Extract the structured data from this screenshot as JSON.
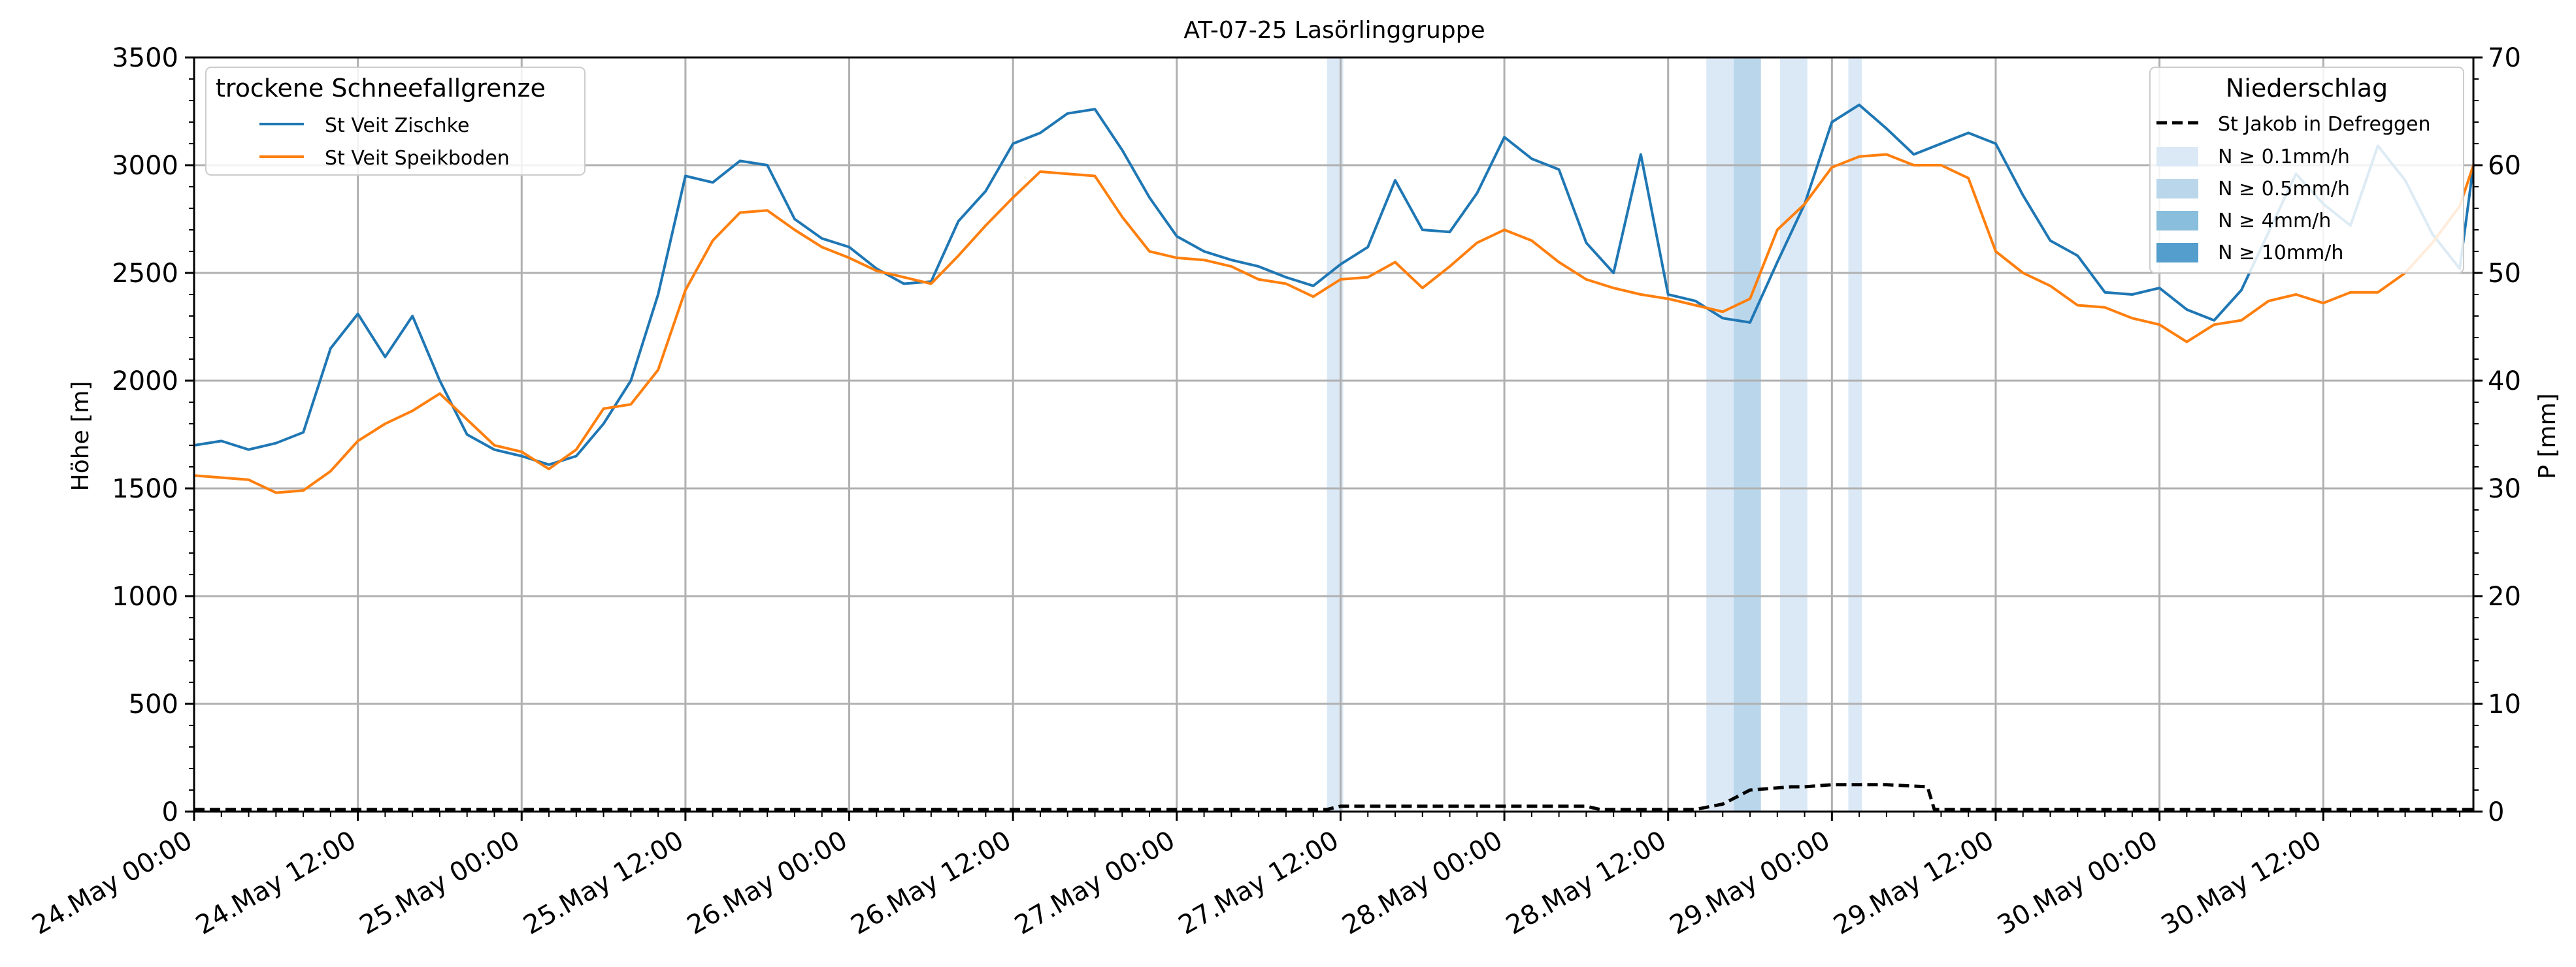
{
  "chart_data": {
    "type": "line",
    "title": "AT-07-25 Lasörlinggruppe",
    "ylabel_left": "Höhe [m]",
    "ylabel_right": "P [mm]",
    "ylim_left": [
      0,
      3500
    ],
    "ylim_right": [
      0,
      70
    ],
    "xlim_hours": [
      0,
      167
    ],
    "grid": true,
    "x_tick_labels": [
      "24.May 00:00",
      "24.May 12:00",
      "25.May 00:00",
      "25.May 12:00",
      "26.May 00:00",
      "26.May 12:00",
      "27.May 00:00",
      "27.May 12:00",
      "28.May 00:00",
      "28.May 12:00",
      "29.May 00:00",
      "29.May 12:00",
      "30.May 00:00",
      "30.May 12:00"
    ],
    "y_left_ticks": [
      0,
      500,
      1000,
      1500,
      2000,
      2500,
      3000,
      3500
    ],
    "y_right_ticks": [
      0,
      10,
      20,
      30,
      40,
      50,
      60,
      70
    ],
    "legend_left": {
      "title": "trockene Schneefallgrenze",
      "placement": "top-left",
      "entries": [
        "St Veit Zischke",
        "St Veit Speikboden"
      ]
    },
    "legend_right": {
      "title": "Niederschlag",
      "placement": "top-right",
      "entries": [
        "St Jakob in Defreggen",
        "N ≥ 0.1mm/h",
        "N ≥ 0.5mm/h",
        "N ≥ 4mm/h",
        "N ≥ 10mm/h"
      ]
    },
    "colors": {
      "zischke": "#1f77b4",
      "speikboden": "#ff7f0e",
      "precip": "#000000",
      "n01": "#dbe9f6",
      "n05": "#bad6eb",
      "n4": "#89bedc",
      "n10": "#539ecd",
      "grid": "#b0b0b0"
    },
    "series": [
      {
        "name": "St Veit Zischke",
        "x": [
          0,
          2,
          4,
          6,
          8,
          10,
          12,
          14,
          16,
          18,
          20,
          22,
          24,
          26,
          28,
          30,
          32,
          34,
          36,
          38,
          40,
          42,
          44,
          46,
          48,
          50,
          52,
          54,
          56,
          58,
          60,
          62,
          64,
          66,
          68,
          70,
          72,
          74,
          76,
          78,
          80,
          82,
          84,
          86,
          88,
          90,
          92,
          94,
          96,
          98,
          100,
          102,
          104,
          106,
          108,
          110,
          112,
          114,
          116,
          118,
          120,
          122,
          124,
          126,
          128,
          130,
          132,
          134,
          136,
          138,
          140,
          142,
          144,
          146,
          148,
          150,
          152,
          154,
          156,
          158,
          160,
          162,
          164,
          166,
          167
        ],
        "values": [
          1700,
          1720,
          1680,
          1710,
          1760,
          2150,
          2310,
          2110,
          2300,
          2000,
          1750,
          1680,
          1650,
          1610,
          1650,
          1800,
          2000,
          2400,
          2950,
          2920,
          3020,
          3000,
          2750,
          2660,
          2620,
          2520,
          2450,
          2460,
          2740,
          2880,
          3100,
          3150,
          3240,
          3260,
          3070,
          2850,
          2670,
          2600,
          2560,
          2530,
          2480,
          2440,
          2540,
          2620,
          2930,
          2700,
          2690,
          2870,
          3130,
          3030,
          2980,
          2640,
          2500,
          3050,
          2400,
          2370,
          2290,
          2270,
          2550,
          2820,
          3200,
          3280,
          3170,
          3050,
          3100,
          3150,
          3100,
          2860,
          2650,
          2580,
          2410,
          2400,
          2430,
          2330,
          2280,
          2420,
          2690,
          2960,
          2820,
          2720,
          3090,
          2930,
          2680,
          2520,
          3000
        ]
      },
      {
        "name": "St Veit Speikboden",
        "x": [
          0,
          2,
          4,
          6,
          8,
          10,
          12,
          14,
          16,
          18,
          20,
          22,
          24,
          26,
          28,
          30,
          32,
          34,
          36,
          38,
          40,
          42,
          44,
          46,
          48,
          50,
          52,
          54,
          56,
          58,
          60,
          62,
          64,
          66,
          68,
          70,
          72,
          74,
          76,
          78,
          80,
          82,
          84,
          86,
          88,
          90,
          92,
          94,
          96,
          98,
          100,
          102,
          104,
          106,
          108,
          110,
          112,
          114,
          116,
          118,
          120,
          122,
          124,
          126,
          128,
          130,
          132,
          134,
          136,
          138,
          140,
          142,
          144,
          146,
          148,
          150,
          152,
          154,
          156,
          158,
          160,
          162,
          164,
          166,
          167
        ],
        "values": [
          1560,
          1550,
          1540,
          1480,
          1490,
          1580,
          1720,
          1800,
          1860,
          1940,
          1820,
          1700,
          1670,
          1590,
          1680,
          1870,
          1890,
          2050,
          2420,
          2650,
          2780,
          2790,
          2700,
          2620,
          2570,
          2510,
          2480,
          2450,
          2580,
          2720,
          2850,
          2970,
          2960,
          2950,
          2760,
          2600,
          2570,
          2560,
          2530,
          2470,
          2450,
          2390,
          2470,
          2480,
          2550,
          2430,
          2530,
          2640,
          2700,
          2650,
          2550,
          2470,
          2430,
          2400,
          2380,
          2350,
          2320,
          2380,
          2700,
          2820,
          2990,
          3040,
          3050,
          3000,
          3000,
          2940,
          2600,
          2500,
          2440,
          2350,
          2340,
          2290,
          2260,
          2180,
          2260,
          2280,
          2370,
          2400,
          2360,
          2410,
          2410,
          2500,
          2640,
          2810,
          3000
        ]
      },
      {
        "name": "St Jakob in Defreggen",
        "axis": "right",
        "x": [
          0,
          83,
          84,
          102,
          103,
          110,
          112,
          114,
          116,
          117,
          118,
          120,
          124,
          127,
          127.5,
          167
        ],
        "values": [
          0.2,
          0.2,
          0.5,
          0.5,
          0.2,
          0.2,
          0.7,
          2.0,
          2.2,
          2.3,
          2.3,
          2.5,
          2.5,
          2.3,
          0.2,
          0.2
        ]
      }
    ],
    "precip_bands": [
      {
        "start": 83,
        "end": 84.2,
        "level": "n01"
      },
      {
        "start": 110.8,
        "end": 112.8,
        "level": "n01"
      },
      {
        "start": 112.8,
        "end": 114.8,
        "level": "n05"
      },
      {
        "start": 116.2,
        "end": 118.2,
        "level": "n01"
      },
      {
        "start": 121.2,
        "end": 122.2,
        "level": "n01"
      }
    ]
  }
}
